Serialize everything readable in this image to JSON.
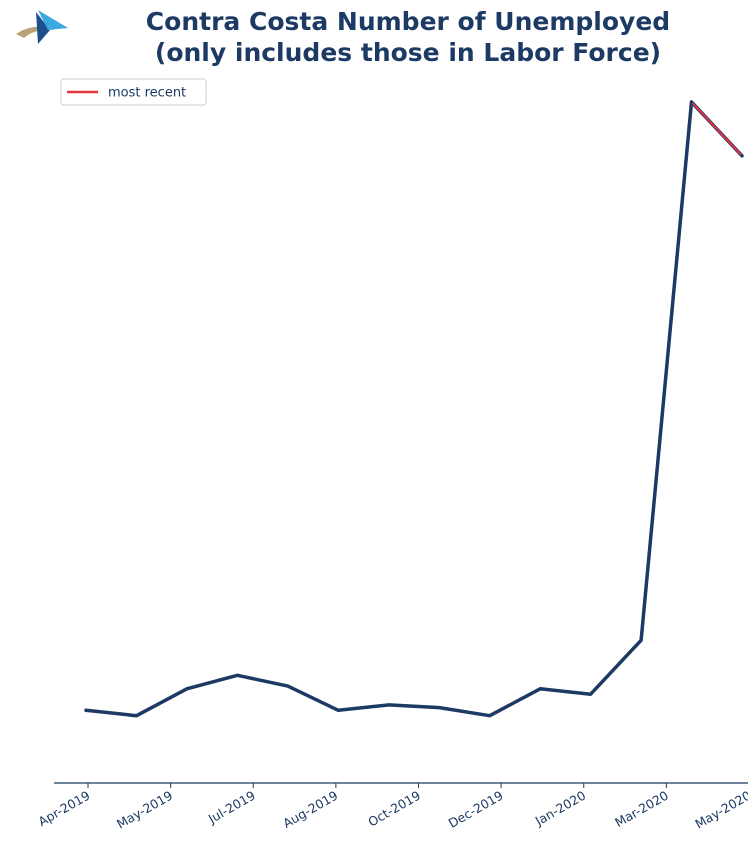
{
  "colors": {
    "series": "#1c3a63",
    "recent": "#e8343c",
    "axis": "#1c3a63",
    "logo_dark": "#1f4e8c",
    "logo_light": "#3aa9e0",
    "logo_tan": "#b9a27a"
  },
  "icons": {
    "logo": "sail-logo-icon"
  },
  "chart_data": {
    "type": "line",
    "title_line1": "Contra Costa Number of Unemployed",
    "title_line2": "(only includes those in Labor Force)",
    "xlabel": "",
    "ylabel": "",
    "grid": false,
    "legend_placement": "top-left",
    "x_tick_labels": [
      "Apr-2019",
      "May-2019",
      "Jul-2019",
      "Aug-2019",
      "Oct-2019",
      "Dec-2019",
      "Jan-2020",
      "Mar-2020",
      "May-2020"
    ],
    "x": [
      "2019-04",
      "2019-05",
      "2019-06",
      "2019-07",
      "2019-08",
      "2019-09",
      "2019-10",
      "2019-11",
      "2019-12",
      "2020-01",
      "2020-02",
      "2020-03",
      "2020-04",
      "2020-05"
    ],
    "ylim": [
      0,
      120
    ],
    "series": [
      {
        "values": [
          7,
          6,
          11,
          13.5,
          11.5,
          7,
          8,
          7.5,
          6,
          11,
          10,
          20,
          120,
          110
        ]
      },
      {
        "name": "most recent",
        "values": [
          null,
          null,
          null,
          null,
          null,
          null,
          null,
          null,
          null,
          null,
          null,
          null,
          120,
          110
        ]
      }
    ]
  }
}
